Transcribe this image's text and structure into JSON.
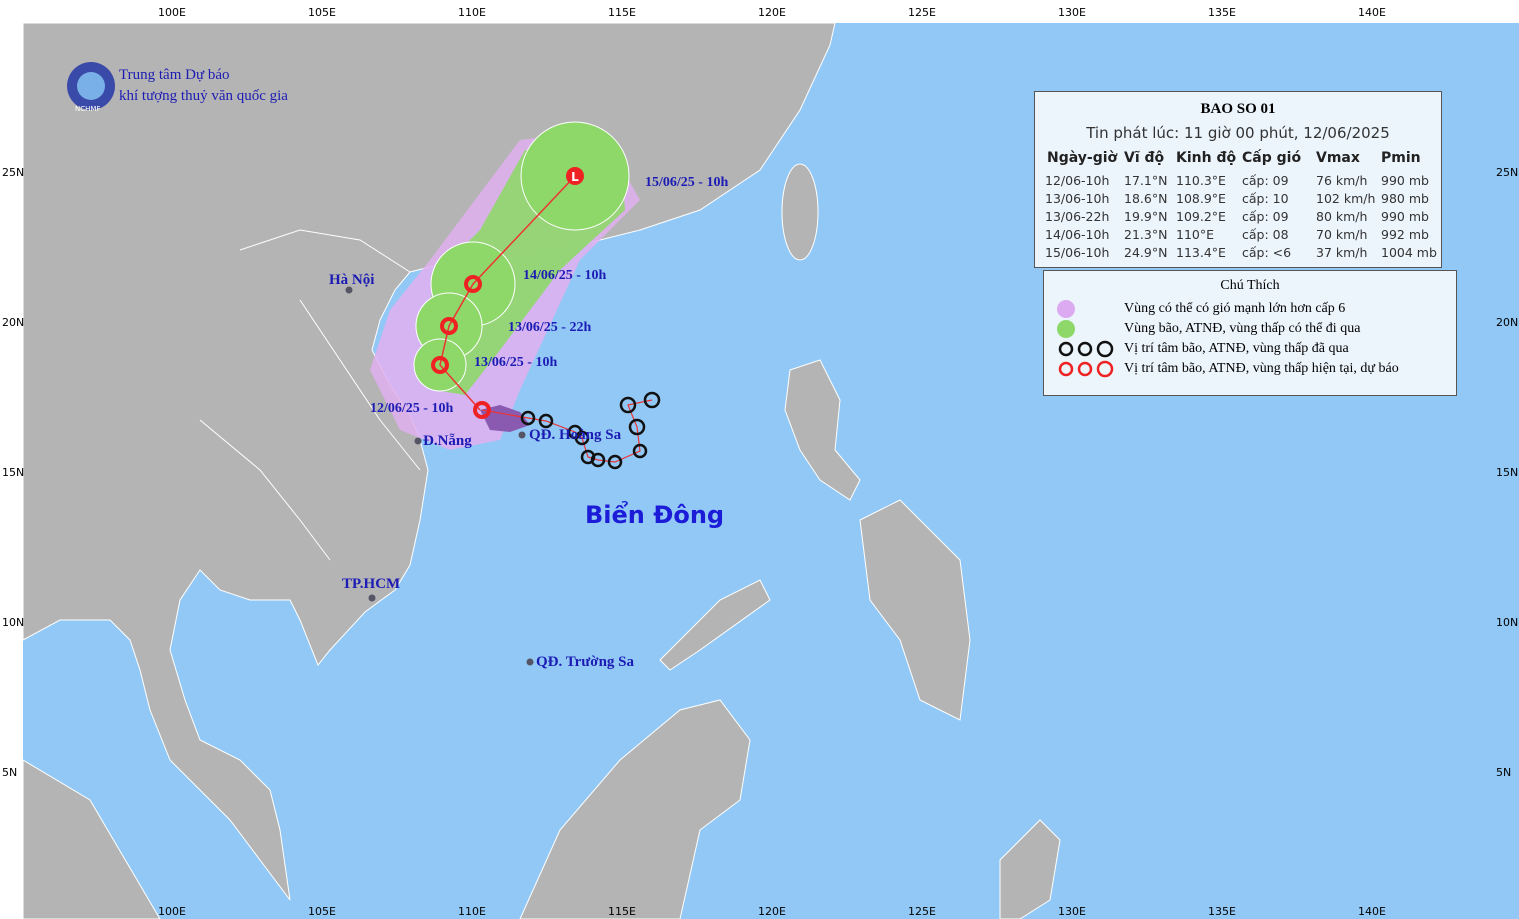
{
  "header": {
    "org_line1": "Trung tâm Dự báo",
    "org_line2": "khí tượng thuỷ văn quốc gia",
    "logo_text": "NCHMF"
  },
  "map": {
    "lon_labels": [
      "100E",
      "105E",
      "110E",
      "115E",
      "120E",
      "125E",
      "130E",
      "135E",
      "140E"
    ],
    "lat_labels": [
      "25N",
      "20N",
      "15N",
      "10N",
      "5N"
    ],
    "places": [
      "Hà Nội",
      "Đ.Nẵng",
      "QĐ. Hoàng Sa",
      "TP.HCM",
      "QĐ. Trường Sa"
    ],
    "sea_label": "Biển Đông",
    "track_labels": [
      "12/06/25 - 10h",
      "13/06/25 - 10h",
      "13/06/25 - 22h",
      "14/06/25 - 10h",
      "15/06/25 - 10h"
    ]
  },
  "forecast": {
    "title": "BAO SO 01",
    "issued": "Tin phát lúc: 11 giờ 00 phút, 12/06/2025",
    "columns": [
      "Ngày-giờ",
      "Vĩ độ",
      "Kinh độ",
      "Cấp gió",
      "Vmax",
      "Pmin"
    ],
    "rows": [
      [
        "12/06-10h",
        "17.1°N",
        "110.3°E",
        "cấp: 09",
        "76 km/h",
        "990 mb"
      ],
      [
        "13/06-10h",
        "18.6°N",
        "108.9°E",
        "cấp: 10",
        "102 km/h",
        "980 mb"
      ],
      [
        "13/06-22h",
        "19.9°N",
        "109.2°E",
        "cấp: 09",
        "80 km/h",
        "990 mb"
      ],
      [
        "14/06-10h",
        "21.3°N",
        "110°E",
        "cấp: 08",
        "70 km/h",
        "992 mb"
      ],
      [
        "15/06-10h",
        "24.9°N",
        "113.4°E",
        "cấp: <6",
        "37 km/h",
        "1004 mb"
      ]
    ]
  },
  "legend": {
    "title": "Chú Thích",
    "items": [
      "Vùng có thể có gió mạnh lớn hơn cấp 6",
      "Vùng bão, ATNĐ, vùng thấp có thể đi qua",
      "Vị trí tâm bão, ATNĐ, vùng thấp đã qua",
      "Vị trí tâm bão, ATNĐ, vùng thấp hiện tại, dự báo"
    ]
  }
}
